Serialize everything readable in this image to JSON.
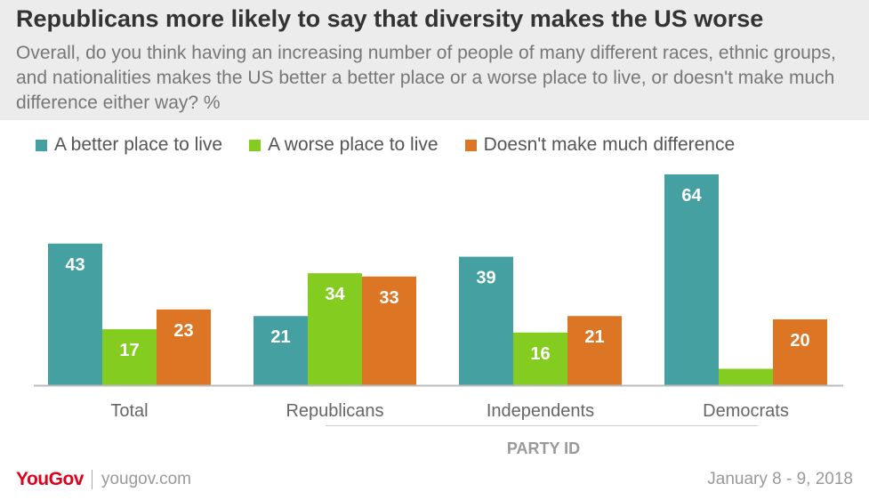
{
  "title": "Republicans more likely to say that diversity makes the US worse",
  "subtitle": "Overall, do you think having an increasing number of people of many different races, ethnic groups, and nationalities makes the US better a better place or a worse place to live, or doesn't make much difference either way? %",
  "footer": {
    "brand": "YouGov",
    "site": "yougov.com",
    "date": "January 8 - 9, 2018"
  },
  "colors": {
    "A better place to live": "#45a0a2",
    "A worse place to live": "#84cc1f",
    "Doesn't make much difference": "#dd7624"
  },
  "chart_data": {
    "type": "bar",
    "title": "Republicans more likely to say that diversity makes the US worse",
    "categories": [
      "Total",
      "Republicans",
      "Independents",
      "Democrats"
    ],
    "group_label": "PARTY ID",
    "series": [
      {
        "name": "A better place to live",
        "values": [
          43,
          21,
          39,
          64
        ]
      },
      {
        "name": "A worse place to live",
        "values": [
          17,
          34,
          16,
          5
        ]
      },
      {
        "name": "Doesn't make much difference",
        "values": [
          23,
          33,
          21,
          20
        ]
      }
    ],
    "ylim": [
      0,
      64
    ],
    "grid": false,
    "legend": "top-left",
    "data_labels": true
  }
}
